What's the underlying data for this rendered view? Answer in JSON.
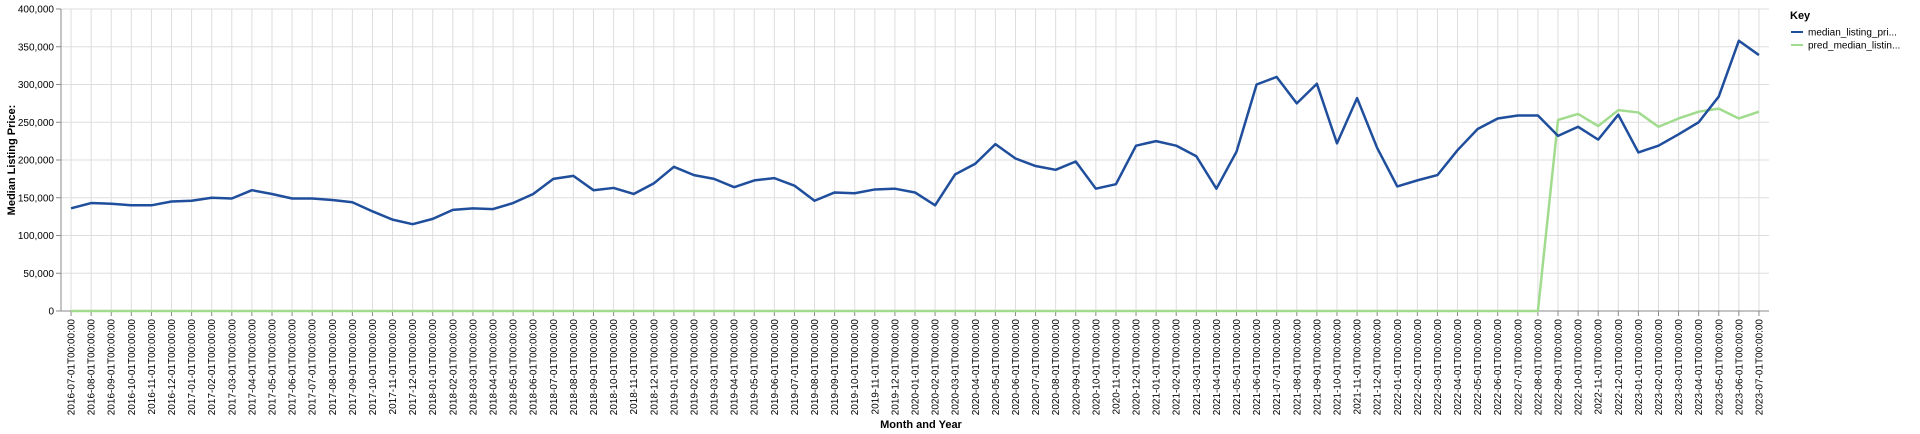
{
  "chart_data": {
    "type": "line",
    "xlabel": "Month and Year",
    "ylabel": "Median Listing Price:",
    "ylim": [
      0,
      400000
    ],
    "yticks": [
      "0",
      "50,000",
      "100,000",
      "150,000",
      "200,000",
      "250,000",
      "300,000",
      "350,000",
      "400,000"
    ],
    "grid": true,
    "legend_position": "right",
    "legend_title": "Key",
    "x": [
      "2016-07-01T00:00:00",
      "2016-08-01T00:00:00",
      "2016-09-01T00:00:00",
      "2016-10-01T00:00:00",
      "2016-11-01T00:00:00",
      "2016-12-01T00:00:00",
      "2017-01-01T00:00:00",
      "2017-02-01T00:00:00",
      "2017-03-01T00:00:00",
      "2017-04-01T00:00:00",
      "2017-05-01T00:00:00",
      "2017-06-01T00:00:00",
      "2017-07-01T00:00:00",
      "2017-08-01T00:00:00",
      "2017-09-01T00:00:00",
      "2017-10-01T00:00:00",
      "2017-11-01T00:00:00",
      "2017-12-01T00:00:00",
      "2018-01-01T00:00:00",
      "2018-02-01T00:00:00",
      "2018-03-01T00:00:00",
      "2018-04-01T00:00:00",
      "2018-05-01T00:00:00",
      "2018-06-01T00:00:00",
      "2018-07-01T00:00:00",
      "2018-08-01T00:00:00",
      "2018-09-01T00:00:00",
      "2018-10-01T00:00:00",
      "2018-11-01T00:00:00",
      "2018-12-01T00:00:00",
      "2019-01-01T00:00:00",
      "2019-02-01T00:00:00",
      "2019-03-01T00:00:00",
      "2019-04-01T00:00:00",
      "2019-05-01T00:00:00",
      "2019-06-01T00:00:00",
      "2019-07-01T00:00:00",
      "2019-08-01T00:00:00",
      "2019-09-01T00:00:00",
      "2019-10-01T00:00:00",
      "2019-11-01T00:00:00",
      "2019-12-01T00:00:00",
      "2020-01-01T00:00:00",
      "2020-02-01T00:00:00",
      "2020-03-01T00:00:00",
      "2020-04-01T00:00:00",
      "2020-05-01T00:00:00",
      "2020-06-01T00:00:00",
      "2020-07-01T00:00:00",
      "2020-08-01T00:00:00",
      "2020-09-01T00:00:00",
      "2020-10-01T00:00:00",
      "2020-11-01T00:00:00",
      "2020-12-01T00:00:00",
      "2021-01-01T00:00:00",
      "2021-02-01T00:00:00",
      "2021-03-01T00:00:00",
      "2021-04-01T00:00:00",
      "2021-05-01T00:00:00",
      "2021-06-01T00:00:00",
      "2021-07-01T00:00:00",
      "2021-08-01T00:00:00",
      "2021-09-01T00:00:00",
      "2021-10-01T00:00:00",
      "2021-11-01T00:00:00",
      "2021-12-01T00:00:00",
      "2022-01-01T00:00:00",
      "2022-02-01T00:00:00",
      "2022-03-01T00:00:00",
      "2022-04-01T00:00:00",
      "2022-05-01T00:00:00",
      "2022-06-01T00:00:00",
      "2022-07-01T00:00:00",
      "2022-08-01T00:00:00",
      "2022-09-01T00:00:00",
      "2022-10-01T00:00:00",
      "2022-11-01T00:00:00",
      "2022-12-01T00:00:00",
      "2023-01-01T00:00:00",
      "2023-02-01T00:00:00",
      "2023-03-01T00:00:00",
      "2023-04-01T00:00:00",
      "2023-05-01T00:00:00",
      "2023-06-01T00:00:00",
      "2023-07-01T00:00:00"
    ],
    "series": [
      {
        "name": "median_listing_pri...",
        "color": "#1f4e9c",
        "values": [
          136000,
          143000,
          142000,
          140000,
          140000,
          145000,
          146000,
          150000,
          149000,
          160000,
          155000,
          149000,
          149000,
          147000,
          144000,
          132000,
          121000,
          115000,
          122000,
          134000,
          136000,
          135000,
          143000,
          155000,
          175000,
          179000,
          160000,
          163000,
          155000,
          169000,
          191000,
          180000,
          175000,
          164000,
          173000,
          176000,
          166000,
          146000,
          157000,
          156000,
          161000,
          162000,
          157000,
          140000,
          181000,
          195000,
          221000,
          202000,
          192000,
          187000,
          198000,
          162000,
          168000,
          219000,
          225000,
          219000,
          205000,
          162000,
          211000,
          300000,
          310000,
          275000,
          301000,
          222000,
          282000,
          216000,
          165000,
          173000,
          180000,
          213000,
          241000,
          255000,
          259000,
          259000,
          232000,
          244000,
          227000,
          260000,
          210000,
          219000,
          234000,
          250000,
          284000,
          358000,
          339000
        ]
      },
      {
        "name": "pred_median_listin...",
        "color": "#a1dc8e",
        "values": [
          0,
          0,
          0,
          0,
          0,
          0,
          0,
          0,
          0,
          0,
          0,
          0,
          0,
          0,
          0,
          0,
          0,
          0,
          0,
          0,
          0,
          0,
          0,
          0,
          0,
          0,
          0,
          0,
          0,
          0,
          0,
          0,
          0,
          0,
          0,
          0,
          0,
          0,
          0,
          0,
          0,
          0,
          0,
          0,
          0,
          0,
          0,
          0,
          0,
          0,
          0,
          0,
          0,
          0,
          0,
          0,
          0,
          0,
          0,
          0,
          0,
          0,
          0,
          0,
          0,
          0,
          0,
          0,
          0,
          0,
          0,
          0,
          0,
          0,
          253000,
          261000,
          245000,
          266000,
          263000,
          244000,
          255000,
          264000,
          268000,
          255000,
          264000
        ]
      }
    ]
  }
}
